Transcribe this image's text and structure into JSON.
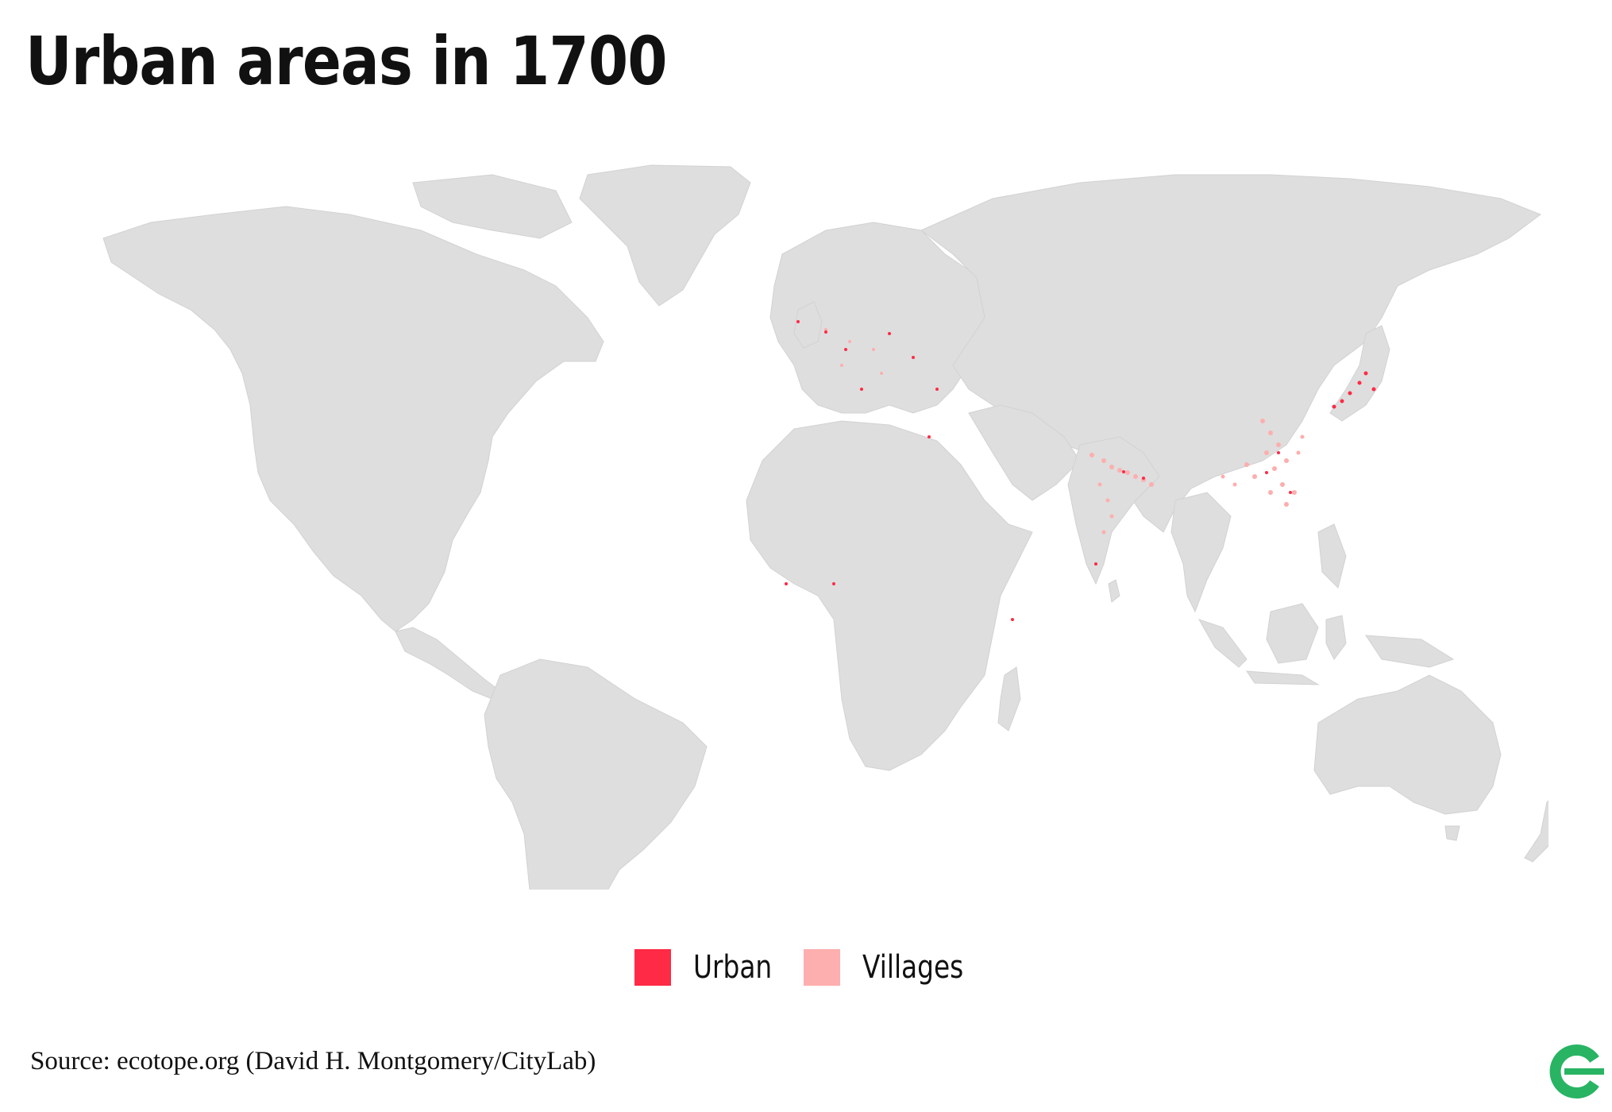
{
  "title": "Urban areas in 1700",
  "legend": {
    "items": [
      {
        "label": "Urban",
        "color": "#ff2a45"
      },
      {
        "label": "Villages",
        "color": "#fdaeae"
      }
    ]
  },
  "source": "Source: ecotope.org (David H. Montgomery/CityLab)",
  "colors": {
    "land": "#dedede",
    "urban": "#ff2a45",
    "villages": "#fdaeae",
    "logo": "#28b463"
  },
  "logo_icon": "citylab-logo-icon"
}
